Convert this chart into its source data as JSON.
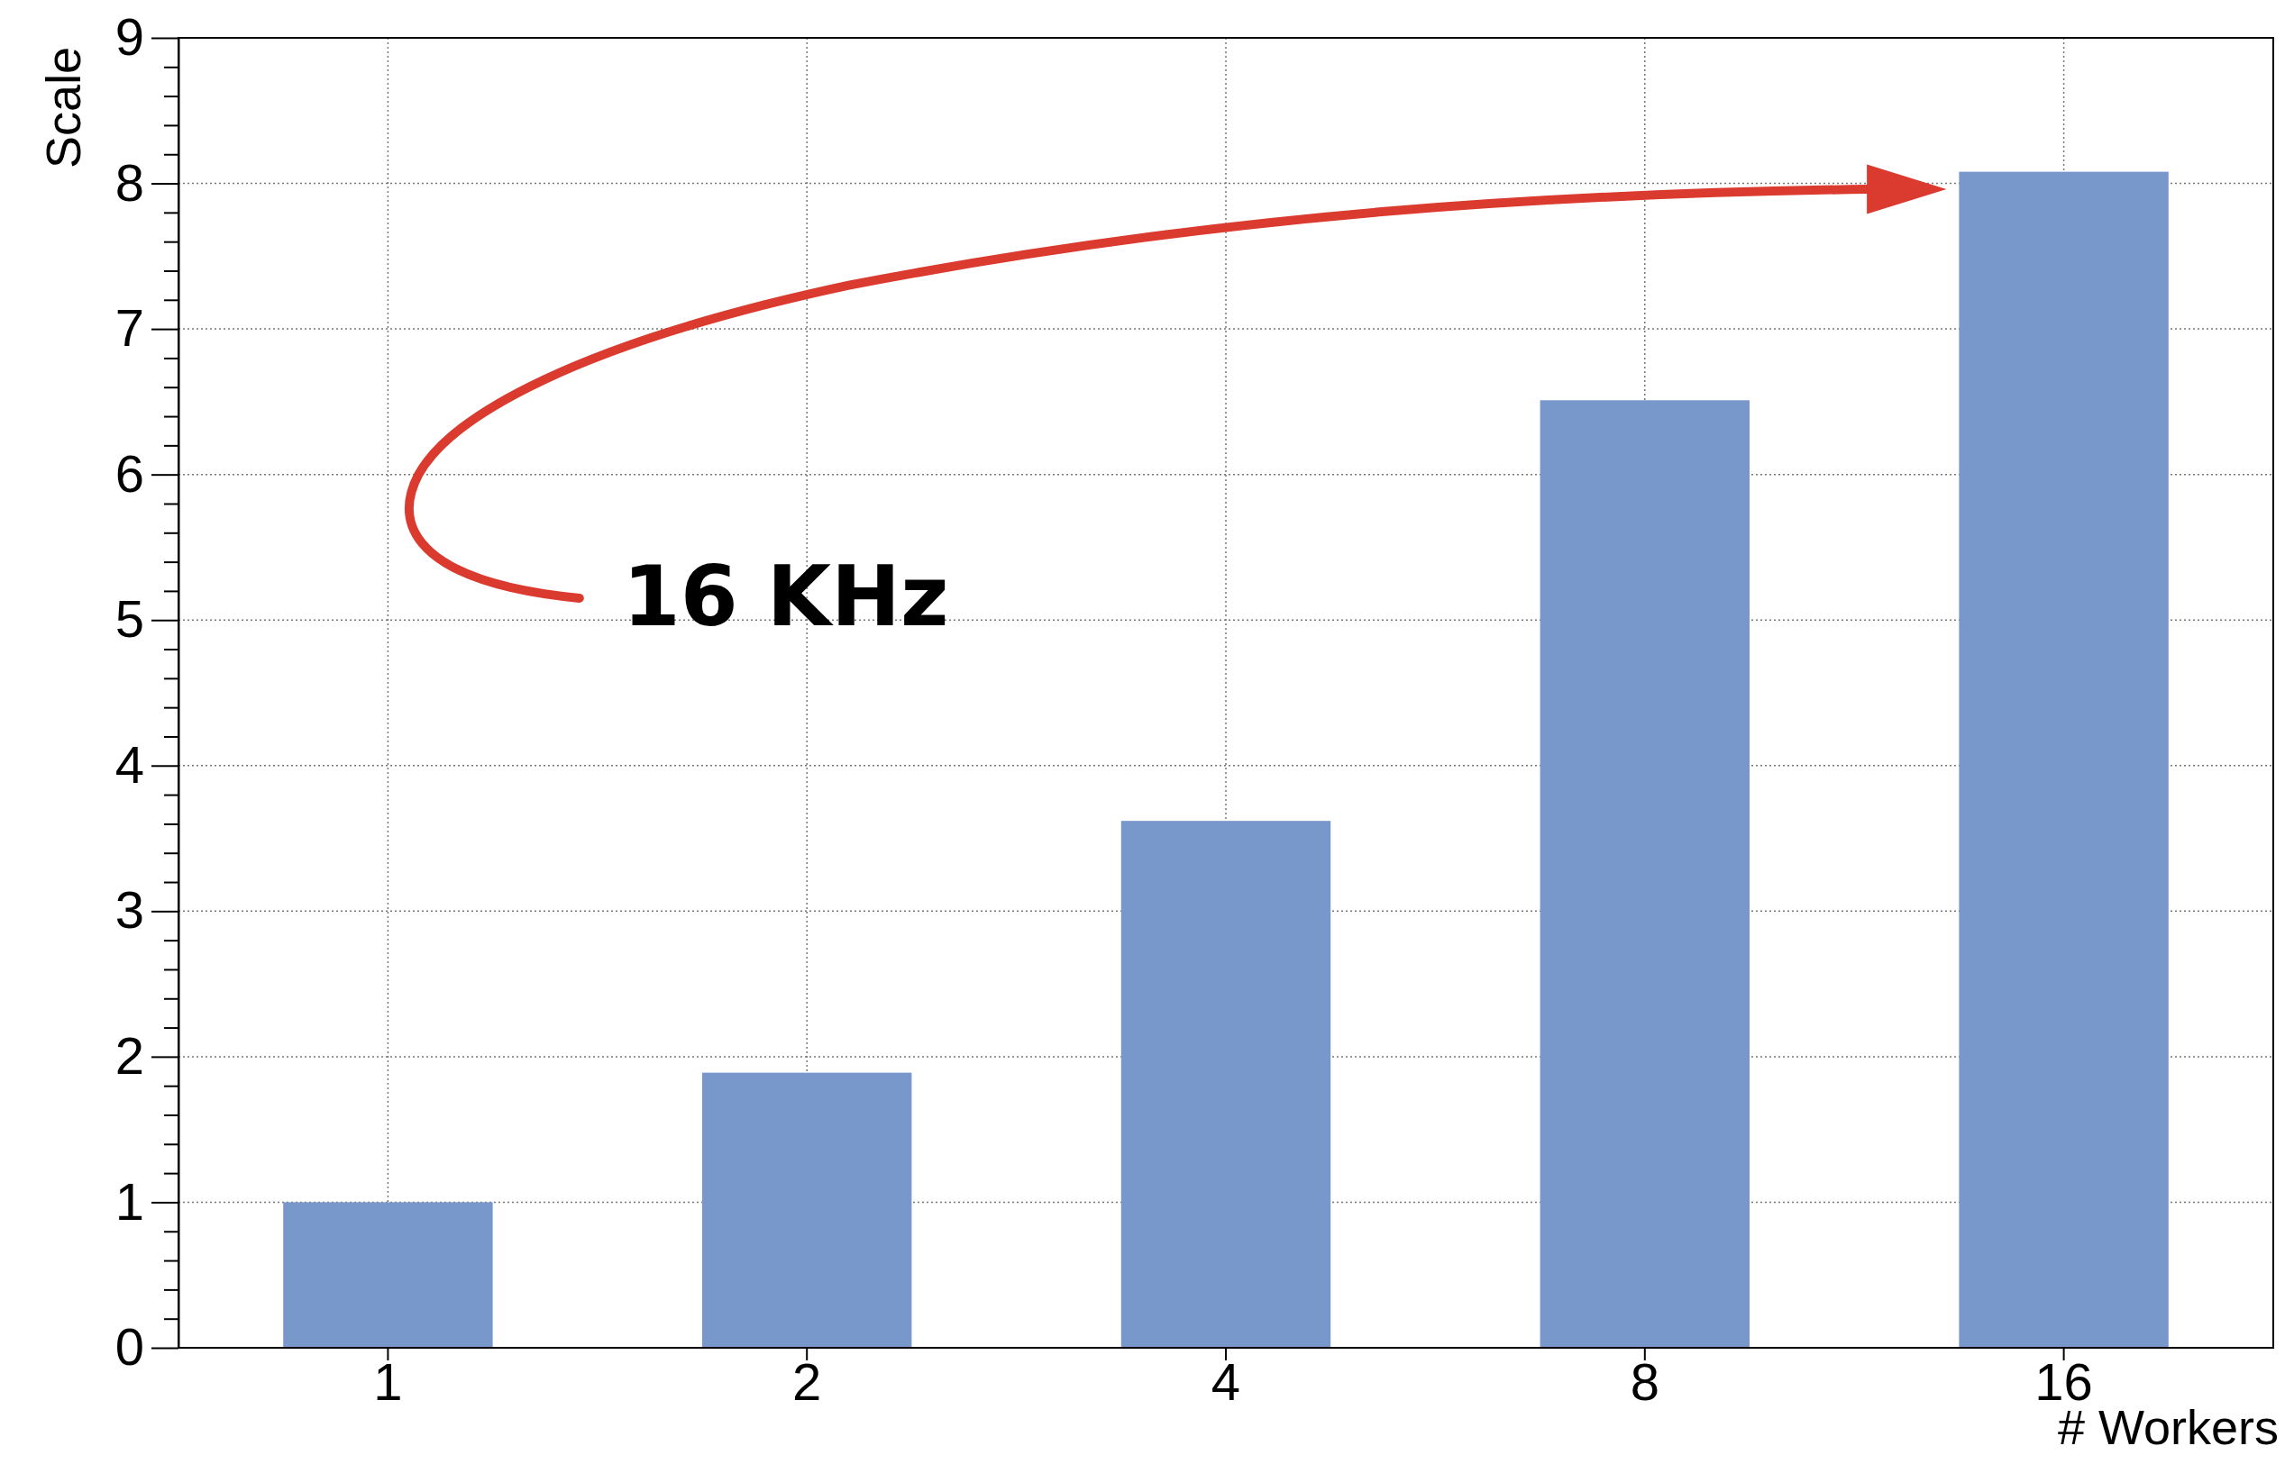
{
  "chart_data": {
    "type": "bar",
    "xlabel": "# Workers",
    "ylabel": "Scale",
    "categories": [
      "1",
      "2",
      "4",
      "8",
      "16"
    ],
    "values": [
      1.0,
      1.89,
      3.62,
      6.51,
      8.08
    ],
    "color": "#7897cb",
    "ylim": [
      0,
      9
    ],
    "yticks": [
      0,
      {
        "value": 0.2,
        "label": null
      },
      {
        "value": 0.4,
        "label": null
      },
      {
        "value": 0.6,
        "label": null
      },
      {
        "value": 0.8,
        "label": null
      },
      1,
      {
        "value": 1.2,
        "label": null
      },
      {
        "value": 1.4,
        "label": null
      },
      {
        "value": 1.6,
        "label": null
      },
      {
        "value": 1.8,
        "label": null
      },
      2,
      {
        "value": 2.2,
        "label": null
      },
      {
        "value": 2.4,
        "label": null
      },
      {
        "value": 2.6,
        "label": null
      },
      {
        "value": 2.8,
        "label": null
      },
      3,
      {
        "value": 3.2,
        "label": null
      },
      {
        "value": 3.4,
        "label": null
      },
      {
        "value": 3.6,
        "label": null
      },
      {
        "value": 3.8,
        "label": null
      },
      4,
      {
        "value": 4.2,
        "label": null
      },
      {
        "value": 4.4,
        "label": null
      },
      {
        "value": 4.6,
        "label": null
      },
      {
        "value": 4.8,
        "label": null
      },
      5,
      {
        "value": 5.2,
        "label": null
      },
      {
        "value": 5.4,
        "label": null
      },
      {
        "value": 5.6,
        "label": null
      },
      {
        "value": 5.8,
        "label": null
      },
      6,
      {
        "value": 6.2,
        "label": null
      },
      {
        "value": 6.4,
        "label": null
      },
      {
        "value": 6.6,
        "label": null
      },
      {
        "value": 6.8,
        "label": null
      },
      7,
      {
        "value": 7.2,
        "label": null
      },
      {
        "value": 7.4,
        "label": null
      },
      {
        "value": 7.6,
        "label": null
      },
      {
        "value": 7.8,
        "label": null
      },
      8,
      {
        "value": 8.2,
        "label": null
      },
      {
        "value": 8.4,
        "label": null
      },
      {
        "value": 8.6,
        "label": null
      },
      {
        "value": 8.8,
        "label": null
      },
      9
    ],
    "grid": true,
    "annotations": [
      "16 KHz"
    ]
  }
}
